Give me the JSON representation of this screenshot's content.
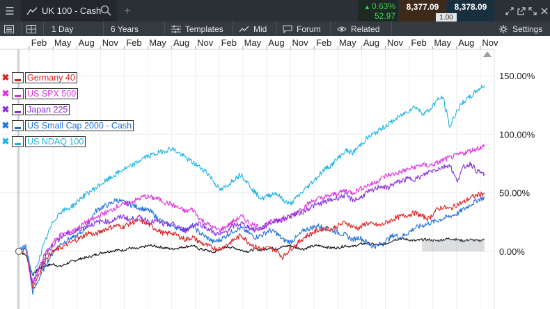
{
  "topbar": {
    "menu_icon": "hamburger-icon",
    "tab_icon": "line-chart-icon",
    "tab_label": "UK 100 - Cash",
    "search_icon": "search-icon",
    "add_icon": "plus-icon",
    "change_pct": "0.63%",
    "change_abs": "52.97",
    "bid": "8,377.09",
    "offer": "8,378.09",
    "spread": "1.00",
    "change_color": "#3fd05a",
    "window_icons": [
      "expand-icon",
      "popout-icon",
      "restore-icon",
      "close-icon"
    ]
  },
  "toolbar": {
    "list_icon": "list-icon",
    "grid_icon": "grid-icon",
    "interval": "1 Day",
    "range": "6 Years",
    "templates": "Templates",
    "price_type": "Mid",
    "forum": "Forum",
    "related": "Related",
    "settings": "Settings"
  },
  "legend": [
    {
      "label": "Germany 40",
      "color": "#e02020"
    },
    {
      "label": "US SPX 500",
      "color": "#e030e0"
    },
    {
      "label": "Japan 225",
      "color": "#8a2be2"
    },
    {
      "label": "US Small Cap 2000 - Cash",
      "color": "#1e6fe0"
    },
    {
      "label": "US NDAQ 100",
      "color": "#1cb4e6"
    }
  ],
  "chart_data": {
    "type": "line",
    "x_tick_labels": [
      "Feb",
      "May",
      "Aug",
      "Nov",
      "Feb",
      "May",
      "Aug",
      "Nov",
      "Feb",
      "May",
      "Aug",
      "Nov",
      "Feb",
      "May",
      "Aug",
      "Nov",
      "Feb",
      "May",
      "Aug",
      "Nov"
    ],
    "y_tick_labels": [
      "150.00%",
      "100.00%",
      "50.00%",
      "0.00%"
    ],
    "y_ticks": [
      150,
      100,
      50,
      0
    ],
    "ylim": [
      -40,
      165
    ],
    "x_units": "months from start (Nov year 0 = 0)",
    "xlim": [
      -2,
      70
    ],
    "grid": true,
    "legend_position": "top-left",
    "series": [
      {
        "name": "UK 100 - Cash",
        "color": "#111111",
        "x": [
          0,
          1,
          2,
          3,
          4,
          5,
          6,
          7,
          8,
          9,
          10,
          11,
          12,
          13,
          14,
          15,
          16,
          17,
          18,
          19,
          20,
          21,
          22,
          23,
          24,
          25,
          26,
          27,
          28,
          29,
          30,
          31,
          32,
          33,
          34,
          35,
          36,
          37,
          38,
          39,
          40,
          41,
          42,
          43,
          44,
          45,
          46,
          47,
          48,
          49,
          50,
          51,
          52,
          53,
          54,
          55,
          56,
          57,
          58,
          59,
          60,
          61,
          62,
          63,
          64,
          65,
          66,
          67
        ],
        "values": [
          0,
          -3,
          -20,
          -14,
          -12,
          -11,
          -13,
          -10,
          -8,
          -6,
          -5,
          -3,
          -1,
          0,
          1,
          1,
          3,
          2,
          4,
          5,
          4,
          3,
          2,
          3,
          4,
          5,
          2,
          1,
          -1,
          2,
          4,
          3,
          1,
          0,
          2,
          1,
          3,
          2,
          4,
          5,
          3,
          2,
          4,
          5,
          4,
          3,
          3,
          5,
          4,
          6,
          7,
          6,
          5,
          7,
          10,
          11,
          10,
          9,
          10,
          10,
          9,
          10,
          11,
          10,
          9,
          10,
          9,
          10
        ]
      },
      {
        "name": "Germany 40",
        "color": "#e02020",
        "x": [
          0,
          1,
          2,
          3,
          4,
          5,
          6,
          7,
          8,
          9,
          10,
          11,
          12,
          13,
          14,
          15,
          16,
          17,
          18,
          19,
          20,
          21,
          22,
          23,
          24,
          25,
          26,
          27,
          28,
          29,
          30,
          31,
          32,
          33,
          34,
          35,
          36,
          37,
          38,
          39,
          40,
          41,
          42,
          43,
          44,
          45,
          46,
          47,
          48,
          49,
          50,
          51,
          52,
          53,
          54,
          55,
          56,
          57,
          58,
          59,
          60,
          61,
          62,
          63,
          64,
          65,
          66,
          67
        ],
        "values": [
          0,
          2,
          -30,
          -18,
          -5,
          0,
          3,
          6,
          9,
          12,
          16,
          14,
          18,
          20,
          22,
          21,
          24,
          26,
          25,
          22,
          18,
          15,
          16,
          13,
          10,
          12,
          8,
          5,
          3,
          2,
          6,
          10,
          14,
          8,
          4,
          2,
          3,
          1,
          -5,
          2,
          6,
          12,
          15,
          18,
          20,
          19,
          22,
          25,
          21,
          20,
          24,
          23,
          22,
          25,
          28,
          30,
          31,
          33,
          30,
          28,
          35,
          38,
          36,
          40,
          42,
          46,
          48,
          50
        ]
      },
      {
        "name": "US SPX 500",
        "color": "#e030e0",
        "x": [
          0,
          1,
          2,
          3,
          4,
          5,
          6,
          7,
          8,
          9,
          10,
          11,
          12,
          13,
          14,
          15,
          16,
          17,
          18,
          19,
          20,
          21,
          22,
          23,
          24,
          25,
          26,
          27,
          28,
          29,
          30,
          31,
          32,
          33,
          34,
          35,
          36,
          37,
          38,
          39,
          40,
          41,
          42,
          43,
          44,
          45,
          46,
          47,
          48,
          49,
          50,
          51,
          52,
          53,
          54,
          55,
          56,
          57,
          58,
          59,
          60,
          61,
          62,
          63,
          64,
          65,
          66,
          67
        ],
        "values": [
          0,
          4,
          -28,
          -12,
          0,
          8,
          14,
          16,
          18,
          22,
          26,
          28,
          32,
          34,
          38,
          40,
          42,
          44,
          47,
          46,
          45,
          42,
          40,
          37,
          34,
          36,
          28,
          24,
          20,
          18,
          22,
          26,
          30,
          25,
          22,
          20,
          24,
          28,
          26,
          30,
          34,
          38,
          42,
          45,
          46,
          48,
          50,
          52,
          50,
          53,
          56,
          58,
          62,
          65,
          66,
          68,
          70,
          72,
          74,
          73,
          75,
          78,
          80,
          82,
          84,
          86,
          88,
          90
        ]
      },
      {
        "name": "Japan 225",
        "color": "#8a2be2",
        "x": [
          0,
          1,
          2,
          3,
          4,
          5,
          6,
          7,
          8,
          9,
          10,
          11,
          12,
          13,
          14,
          15,
          16,
          17,
          18,
          19,
          20,
          21,
          22,
          23,
          24,
          25,
          26,
          27,
          28,
          29,
          30,
          31,
          32,
          33,
          34,
          35,
          36,
          37,
          38,
          39,
          40,
          41,
          42,
          43,
          44,
          45,
          46,
          47,
          48,
          49,
          50,
          51,
          52,
          53,
          54,
          55,
          56,
          57,
          58,
          59,
          60,
          61,
          62,
          63,
          64,
          65,
          66,
          67
        ],
        "values": [
          0,
          3,
          -28,
          -14,
          -2,
          6,
          12,
          15,
          16,
          20,
          22,
          24,
          26,
          25,
          28,
          30,
          27,
          29,
          28,
          25,
          26,
          22,
          24,
          20,
          18,
          22,
          24,
          20,
          16,
          14,
          18,
          22,
          24,
          21,
          18,
          20,
          24,
          26,
          28,
          30,
          32,
          34,
          38,
          40,
          42,
          44,
          46,
          48,
          44,
          45,
          50,
          52,
          56,
          54,
          58,
          60,
          62,
          62,
          64,
          68,
          70,
          72,
          74,
          60,
          72,
          75,
          68,
          66
        ]
      },
      {
        "name": "US Small Cap 2000 - Cash",
        "color": "#1e6fe0",
        "x": [
          0,
          1,
          2,
          3,
          4,
          5,
          6,
          7,
          8,
          9,
          10,
          11,
          12,
          13,
          14,
          15,
          16,
          17,
          18,
          19,
          20,
          21,
          22,
          23,
          24,
          25,
          26,
          27,
          28,
          29,
          30,
          31,
          32,
          33,
          34,
          35,
          36,
          37,
          38,
          39,
          40,
          41,
          42,
          43,
          44,
          45,
          46,
          47,
          48,
          49,
          50,
          51,
          52,
          53,
          54,
          55,
          56,
          57,
          58,
          59,
          60,
          61,
          62,
          63,
          64,
          65,
          66,
          67
        ],
        "values": [
          0,
          4,
          -35,
          -22,
          -10,
          0,
          6,
          10,
          12,
          16,
          24,
          34,
          38,
          40,
          44,
          42,
          40,
          38,
          36,
          34,
          28,
          24,
          22,
          20,
          18,
          22,
          16,
          12,
          8,
          10,
          14,
          18,
          20,
          16,
          12,
          14,
          18,
          16,
          10,
          8,
          12,
          18,
          20,
          22,
          20,
          18,
          16,
          14,
          10,
          12,
          8,
          4,
          6,
          10,
          14,
          12,
          16,
          20,
          22,
          24,
          26,
          28,
          30,
          32,
          36,
          40,
          44,
          46
        ]
      },
      {
        "name": "US NDAQ 100",
        "color": "#1cb4e6",
        "x": [
          0,
          1,
          2,
          3,
          4,
          5,
          6,
          7,
          8,
          9,
          10,
          11,
          12,
          13,
          14,
          15,
          16,
          17,
          18,
          19,
          20,
          21,
          22,
          23,
          24,
          25,
          26,
          27,
          28,
          29,
          30,
          31,
          32,
          33,
          34,
          35,
          36,
          37,
          38,
          39,
          40,
          41,
          42,
          43,
          44,
          45,
          46,
          47,
          48,
          49,
          50,
          51,
          52,
          53,
          54,
          55,
          56,
          57,
          58,
          59,
          60,
          61,
          62,
          63,
          64,
          65,
          66,
          67
        ],
        "values": [
          0,
          5,
          -22,
          -5,
          12,
          26,
          34,
          36,
          40,
          46,
          50,
          54,
          58,
          62,
          66,
          70,
          72,
          76,
          80,
          82,
          84,
          86,
          88,
          84,
          80,
          76,
          72,
          68,
          60,
          52,
          56,
          62,
          66,
          58,
          50,
          45,
          48,
          50,
          44,
          40,
          46,
          52,
          58,
          64,
          70,
          74,
          80,
          86,
          84,
          90,
          96,
          100,
          104,
          108,
          112,
          116,
          120,
          124,
          118,
          120,
          128,
          132,
          106,
          120,
          128,
          132,
          138,
          142
        ]
      }
    ]
  }
}
